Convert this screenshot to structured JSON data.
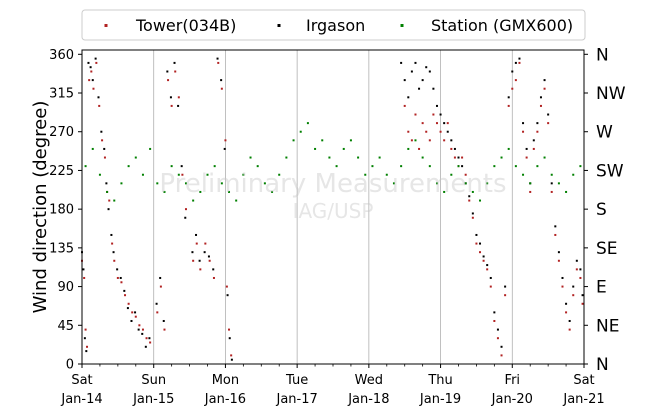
{
  "chart_data": {
    "type": "scatter",
    "title": "",
    "xlabel": "",
    "ylabel": "Wind direction (degree)",
    "ylim": [
      0,
      365
    ],
    "xlim": [
      "2017-01-14",
      "2017-01-21"
    ],
    "x_ticks": [
      {
        "date": "2017-01-14",
        "day": "Sat",
        "date_label": "Jan-14"
      },
      {
        "date": "2017-01-15",
        "day": "Sun",
        "date_label": "Jan-15"
      },
      {
        "date": "2017-01-16",
        "day": "Mon",
        "date_label": "Jan-16"
      },
      {
        "date": "2017-01-17",
        "day": "Tue",
        "date_label": "Jan-17"
      },
      {
        "date": "2017-01-18",
        "day": "Wed",
        "date_label": "Jan-18"
      },
      {
        "date": "2017-01-19",
        "day": "Thu",
        "date_label": "Jan-19"
      },
      {
        "date": "2017-01-20",
        "day": "Fri",
        "date_label": "Jan-20"
      },
      {
        "date": "2017-01-21",
        "day": "Sat",
        "date_label": "Jan-21"
      }
    ],
    "y_ticks": [
      0,
      45,
      90,
      135,
      180,
      225,
      270,
      315,
      360
    ],
    "compass_labels": [
      {
        "value": 0,
        "label": "N"
      },
      {
        "value": 45,
        "label": "NE"
      },
      {
        "value": 90,
        "label": "E"
      },
      {
        "value": 135,
        "label": "SE"
      },
      {
        "value": 180,
        "label": "S"
      },
      {
        "value": 225,
        "label": "SW"
      },
      {
        "value": 270,
        "label": "W"
      },
      {
        "value": 315,
        "label": "NW"
      },
      {
        "value": 360,
        "label": "N"
      }
    ],
    "grid": "vertical lines at day ticks",
    "legend_position": "top-center",
    "watermark": [
      "Preliminary Measurements",
      "IAG/USP"
    ],
    "series": [
      {
        "name": "Tower(034B)",
        "color": "#b22222",
        "points": [
          [
            0.0,
            120
          ],
          [
            0.03,
            100
          ],
          [
            0.05,
            40
          ],
          [
            0.07,
            20
          ],
          [
            0.1,
            330
          ],
          [
            0.13,
            340
          ],
          [
            0.16,
            320
          ],
          [
            0.2,
            350
          ],
          [
            0.24,
            300
          ],
          [
            0.28,
            260
          ],
          [
            0.32,
            240
          ],
          [
            0.35,
            200
          ],
          [
            0.38,
            190
          ],
          [
            0.42,
            140
          ],
          [
            0.45,
            120
          ],
          [
            0.5,
            100
          ],
          [
            0.55,
            95
          ],
          [
            0.6,
            80
          ],
          [
            0.65,
            70
          ],
          [
            0.7,
            60
          ],
          [
            0.75,
            55
          ],
          [
            0.8,
            45
          ],
          [
            0.85,
            40
          ],
          [
            0.9,
            30
          ],
          [
            0.95,
            25
          ],
          [
            1.05,
            60
          ],
          [
            1.1,
            90
          ],
          [
            1.15,
            40
          ],
          [
            1.2,
            330
          ],
          [
            1.25,
            300
          ],
          [
            1.3,
            340
          ],
          [
            1.35,
            310
          ],
          [
            1.4,
            220
          ],
          [
            1.45,
            180
          ],
          [
            1.55,
            120
          ],
          [
            1.6,
            140
          ],
          [
            1.65,
            110
          ],
          [
            1.72,
            140
          ],
          [
            1.78,
            120
          ],
          [
            1.84,
            100
          ],
          [
            1.9,
            350
          ],
          [
            1.95,
            320
          ],
          [
            2.0,
            260
          ],
          [
            2.02,
            90
          ],
          [
            2.05,
            40
          ],
          [
            2.08,
            10
          ],
          [
            4.5,
            300
          ],
          [
            4.55,
            270
          ],
          [
            4.6,
            260
          ],
          [
            4.65,
            290
          ],
          [
            4.7,
            250
          ],
          [
            4.75,
            280
          ],
          [
            4.8,
            270
          ],
          [
            4.85,
            260
          ],
          [
            4.9,
            290
          ],
          [
            4.95,
            280
          ],
          [
            5.0,
            270
          ],
          [
            5.05,
            260
          ],
          [
            5.1,
            280
          ],
          [
            5.15,
            250
          ],
          [
            5.2,
            240
          ],
          [
            5.25,
            230
          ],
          [
            5.3,
            240
          ],
          [
            5.35,
            220
          ],
          [
            5.4,
            190
          ],
          [
            5.45,
            170
          ],
          [
            5.5,
            140
          ],
          [
            5.55,
            130
          ],
          [
            5.6,
            120
          ],
          [
            5.65,
            110
          ],
          [
            5.7,
            90
          ],
          [
            5.75,
            50
          ],
          [
            5.8,
            30
          ],
          [
            5.85,
            10
          ],
          [
            5.9,
            80
          ],
          [
            5.95,
            300
          ],
          [
            6.0,
            320
          ],
          [
            6.05,
            330
          ],
          [
            6.1,
            350
          ],
          [
            6.15,
            270
          ],
          [
            6.2,
            240
          ],
          [
            6.25,
            200
          ],
          [
            6.3,
            250
          ],
          [
            6.35,
            270
          ],
          [
            6.4,
            300
          ],
          [
            6.45,
            320
          ],
          [
            6.5,
            280
          ],
          [
            6.55,
            200
          ],
          [
            6.6,
            150
          ],
          [
            6.65,
            120
          ],
          [
            6.7,
            90
          ],
          [
            6.75,
            60
          ],
          [
            6.8,
            40
          ],
          [
            6.85,
            80
          ],
          [
            6.9,
            110
          ],
          [
            6.95,
            100
          ],
          [
            6.98,
            70
          ]
        ]
      },
      {
        "name": "Irgason",
        "color": "#000000",
        "points": [
          [
            0.0,
            130
          ],
          [
            0.02,
            110
          ],
          [
            0.04,
            30
          ],
          [
            0.06,
            15
          ],
          [
            0.09,
            350
          ],
          [
            0.12,
            345
          ],
          [
            0.15,
            330
          ],
          [
            0.19,
            355
          ],
          [
            0.23,
            310
          ],
          [
            0.27,
            270
          ],
          [
            0.31,
            250
          ],
          [
            0.34,
            210
          ],
          [
            0.37,
            180
          ],
          [
            0.41,
            150
          ],
          [
            0.44,
            130
          ],
          [
            0.49,
            110
          ],
          [
            0.54,
            100
          ],
          [
            0.59,
            85
          ],
          [
            0.64,
            65
          ],
          [
            0.69,
            50
          ],
          [
            0.74,
            60
          ],
          [
            0.79,
            40
          ],
          [
            0.84,
            35
          ],
          [
            0.89,
            20
          ],
          [
            0.94,
            30
          ],
          [
            1.04,
            70
          ],
          [
            1.09,
            100
          ],
          [
            1.14,
            50
          ],
          [
            1.19,
            340
          ],
          [
            1.24,
            310
          ],
          [
            1.29,
            350
          ],
          [
            1.34,
            300
          ],
          [
            1.39,
            230
          ],
          [
            1.44,
            170
          ],
          [
            1.54,
            130
          ],
          [
            1.59,
            150
          ],
          [
            1.64,
            120
          ],
          [
            1.71,
            130
          ],
          [
            1.77,
            125
          ],
          [
            1.83,
            110
          ],
          [
            1.89,
            355
          ],
          [
            1.94,
            330
          ],
          [
            1.99,
            250
          ],
          [
            2.03,
            80
          ],
          [
            2.06,
            30
          ],
          [
            2.09,
            5
          ],
          [
            4.45,
            350
          ],
          [
            4.5,
            330
          ],
          [
            4.55,
            310
          ],
          [
            4.6,
            340
          ],
          [
            4.65,
            350
          ],
          [
            4.7,
            320
          ],
          [
            4.75,
            330
          ],
          [
            4.8,
            345
          ],
          [
            4.85,
            340
          ],
          [
            4.9,
            320
          ],
          [
            4.95,
            300
          ],
          [
            5.0,
            290
          ],
          [
            5.05,
            280
          ],
          [
            5.1,
            270
          ],
          [
            5.15,
            260
          ],
          [
            5.2,
            250
          ],
          [
            5.25,
            240
          ],
          [
            5.3,
            230
          ],
          [
            5.35,
            210
          ],
          [
            5.4,
            195
          ],
          [
            5.45,
            175
          ],
          [
            5.5,
            150
          ],
          [
            5.55,
            140
          ],
          [
            5.6,
            125
          ],
          [
            5.65,
            115
          ],
          [
            5.7,
            100
          ],
          [
            5.75,
            60
          ],
          [
            5.8,
            40
          ],
          [
            5.85,
            20
          ],
          [
            5.9,
            90
          ],
          [
            5.95,
            310
          ],
          [
            6.0,
            340
          ],
          [
            6.05,
            350
          ],
          [
            6.1,
            355
          ],
          [
            6.15,
            280
          ],
          [
            6.2,
            250
          ],
          [
            6.25,
            210
          ],
          [
            6.3,
            260
          ],
          [
            6.35,
            280
          ],
          [
            6.4,
            310
          ],
          [
            6.45,
            330
          ],
          [
            6.5,
            290
          ],
          [
            6.55,
            210
          ],
          [
            6.6,
            160
          ],
          [
            6.65,
            130
          ],
          [
            6.7,
            100
          ],
          [
            6.75,
            70
          ],
          [
            6.8,
            50
          ],
          [
            6.85,
            90
          ],
          [
            6.9,
            120
          ],
          [
            6.95,
            110
          ],
          [
            6.98,
            80
          ]
        ]
      },
      {
        "name": "Station (GMX600)",
        "color": "#008000",
        "points": [
          [
            0.05,
            230
          ],
          [
            0.15,
            250
          ],
          [
            0.25,
            220
          ],
          [
            0.35,
            200
          ],
          [
            0.45,
            190
          ],
          [
            0.55,
            210
          ],
          [
            0.65,
            230
          ],
          [
            0.75,
            240
          ],
          [
            0.85,
            220
          ],
          [
            0.95,
            250
          ],
          [
            1.05,
            210
          ],
          [
            1.15,
            200
          ],
          [
            1.25,
            230
          ],
          [
            1.35,
            220
          ],
          [
            1.45,
            210
          ],
          [
            1.55,
            190
          ],
          [
            1.65,
            200
          ],
          [
            1.75,
            220
          ],
          [
            1.85,
            230
          ],
          [
            1.95,
            210
          ],
          [
            2.05,
            200
          ],
          [
            2.15,
            190
          ],
          [
            2.25,
            220
          ],
          [
            2.35,
            240
          ],
          [
            2.45,
            230
          ],
          [
            2.55,
            210
          ],
          [
            2.65,
            200
          ],
          [
            2.75,
            220
          ],
          [
            2.85,
            240
          ],
          [
            2.95,
            260
          ],
          [
            3.05,
            270
          ],
          [
            3.15,
            280
          ],
          [
            3.25,
            250
          ],
          [
            3.35,
            260
          ],
          [
            3.45,
            240
          ],
          [
            3.55,
            230
          ],
          [
            3.65,
            250
          ],
          [
            3.75,
            260
          ],
          [
            3.85,
            240
          ],
          [
            3.95,
            220
          ],
          [
            4.05,
            230
          ],
          [
            4.15,
            240
          ],
          [
            4.25,
            220
          ],
          [
            4.35,
            210
          ],
          [
            4.45,
            230
          ],
          [
            4.55,
            250
          ],
          [
            4.65,
            260
          ],
          [
            4.75,
            240
          ],
          [
            4.85,
            230
          ],
          [
            4.95,
            210
          ],
          [
            5.05,
            200
          ],
          [
            5.15,
            220
          ],
          [
            5.25,
            230
          ],
          [
            5.35,
            210
          ],
          [
            5.45,
            200
          ],
          [
            5.55,
            190
          ],
          [
            5.65,
            210
          ],
          [
            5.75,
            230
          ],
          [
            5.85,
            240
          ],
          [
            5.95,
            250
          ],
          [
            6.05,
            230
          ],
          [
            6.15,
            220
          ],
          [
            6.25,
            210
          ],
          [
            6.35,
            230
          ],
          [
            6.45,
            240
          ],
          [
            6.55,
            220
          ],
          [
            6.65,
            210
          ],
          [
            6.75,
            200
          ],
          [
            6.85,
            220
          ],
          [
            6.95,
            230
          ]
        ]
      }
    ]
  }
}
